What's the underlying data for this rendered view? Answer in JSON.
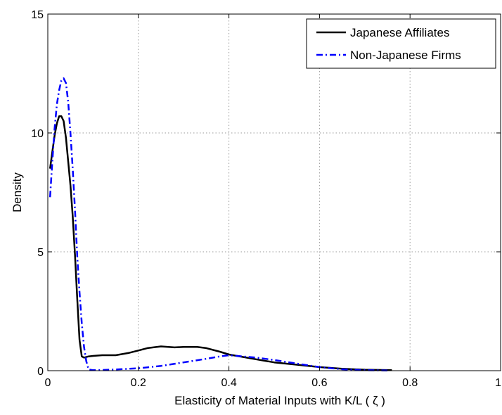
{
  "chart_data": {
    "type": "line",
    "title": "",
    "xlabel": "Elasticity of Material Inputs with K/L ( ζ )",
    "ylabel": "Density",
    "xlim": [
      0,
      1
    ],
    "ylim": [
      0,
      15
    ],
    "xticks": [
      0,
      0.2,
      0.4,
      0.6,
      0.8,
      1
    ],
    "yticks": [
      0,
      5,
      10,
      15
    ],
    "xtick_labels": [
      "0",
      "0.2",
      "0.4",
      "0.6",
      "0.8",
      "1"
    ],
    "ytick_labels": [
      "0",
      "5",
      "10",
      "15"
    ],
    "grid": true,
    "legend_position": "top-right",
    "series": [
      {
        "name": "Japanese Affiliates",
        "color": "#000000",
        "style": "solid",
        "x": [
          0.005,
          0.01,
          0.015,
          0.02,
          0.025,
          0.03,
          0.035,
          0.04,
          0.045,
          0.05,
          0.055,
          0.06,
          0.065,
          0.07,
          0.075,
          0.08,
          0.09,
          0.1,
          0.12,
          0.15,
          0.18,
          0.2,
          0.22,
          0.25,
          0.28,
          0.3,
          0.33,
          0.35,
          0.38,
          0.4,
          0.43,
          0.46,
          0.5,
          0.55,
          0.6,
          0.65,
          0.7,
          0.76
        ],
        "y": [
          8.5,
          9.2,
          9.9,
          10.4,
          10.7,
          10.7,
          10.5,
          9.8,
          8.8,
          7.8,
          6.5,
          4.9,
          3.0,
          1.3,
          0.6,
          0.55,
          0.6,
          0.62,
          0.65,
          0.65,
          0.75,
          0.85,
          0.95,
          1.02,
          0.98,
          1.0,
          1.0,
          0.95,
          0.8,
          0.68,
          0.58,
          0.48,
          0.35,
          0.25,
          0.15,
          0.08,
          0.04,
          0.02
        ]
      },
      {
        "name": "Non-Japanese Firms",
        "color": "#0000ff",
        "style": "dashdot",
        "x": [
          0.005,
          0.01,
          0.015,
          0.02,
          0.025,
          0.03,
          0.035,
          0.04,
          0.045,
          0.05,
          0.055,
          0.06,
          0.065,
          0.07,
          0.075,
          0.08,
          0.085,
          0.09,
          0.1,
          0.12,
          0.15,
          0.2,
          0.25,
          0.3,
          0.35,
          0.38,
          0.4,
          0.43,
          0.46,
          0.5,
          0.55,
          0.6,
          0.65,
          0.7,
          0.75
        ],
        "y": [
          7.3,
          8.8,
          10.2,
          11.2,
          11.8,
          12.2,
          12.3,
          12.1,
          11.3,
          10.0,
          8.5,
          6.8,
          4.8,
          3.3,
          2.0,
          1.0,
          0.4,
          0.05,
          0.02,
          0.03,
          0.05,
          0.1,
          0.2,
          0.35,
          0.5,
          0.6,
          0.65,
          0.6,
          0.55,
          0.45,
          0.3,
          0.15,
          0.06,
          0.02,
          0.01
        ]
      }
    ]
  }
}
